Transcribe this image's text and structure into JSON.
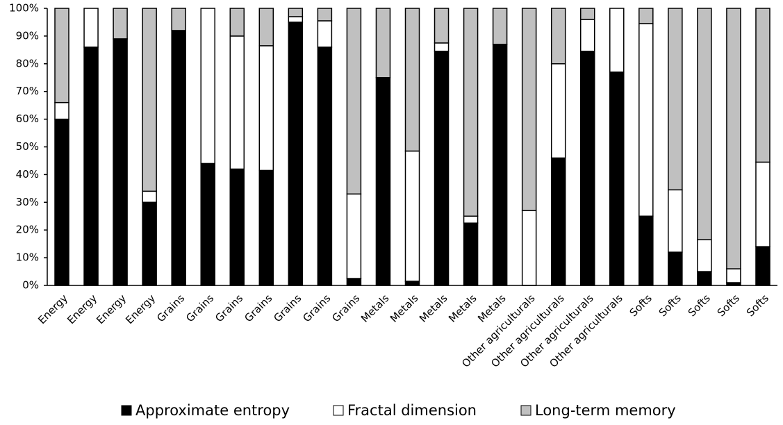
{
  "chart_data": {
    "type": "stacked_bar",
    "categories": [
      "Energy",
      "Energy",
      "Energy",
      "Energy",
      "Grains",
      "Grains",
      "Grains",
      "Grains",
      "Grains",
      "Grains",
      "Grains",
      "Metals",
      "Metals",
      "Metals",
      "Metals",
      "Metals",
      "Other agriculturals",
      "Other agriculturals",
      "Other agriculturals",
      "Other agriculturals",
      "Softs",
      "Softs",
      "Softs",
      "Softs",
      "Softs"
    ],
    "series": [
      {
        "name": "Approximate entropy",
        "color": "#000000",
        "values": [
          60,
          86,
          89,
          30,
          92,
          44,
          42,
          41.5,
          95,
          86,
          2.5,
          75,
          1.5,
          84.5,
          22.5,
          87,
          0,
          46,
          84.5,
          77,
          25,
          12,
          5,
          1,
          14
        ]
      },
      {
        "name": "Fractal dimension",
        "color": "#ffffff",
        "values": [
          6,
          14,
          0,
          4,
          0,
          56,
          48,
          45,
          2,
          9.5,
          30.5,
          0,
          47,
          3,
          2.5,
          0,
          27,
          34,
          11.5,
          23,
          69.5,
          22.5,
          11.5,
          5,
          30.5
        ]
      },
      {
        "name": "Long-term memory",
        "color": "#c0c0c0",
        "values": [
          34,
          0,
          11,
          66,
          8,
          0,
          10,
          13.5,
          3,
          4.5,
          67,
          25,
          51.5,
          12.5,
          75,
          13,
          73,
          20,
          4,
          0,
          5.5,
          65.5,
          83.5,
          94,
          55.5
        ]
      }
    ],
    "ylim": [
      0,
      100
    ],
    "yticks": [
      {
        "value": 0,
        "label": "0%"
      },
      {
        "value": 10,
        "label": "10%"
      },
      {
        "value": 20,
        "label": "20%"
      },
      {
        "value": 30,
        "label": "30%"
      },
      {
        "value": 40,
        "label": "40%"
      },
      {
        "value": 50,
        "label": "50%"
      },
      {
        "value": 60,
        "label": "60%"
      },
      {
        "value": 70,
        "label": "70%"
      },
      {
        "value": 80,
        "label": "80%"
      },
      {
        "value": 90,
        "label": "90%"
      },
      {
        "value": 100,
        "label": "100%"
      }
    ],
    "legend": "bottom"
  }
}
